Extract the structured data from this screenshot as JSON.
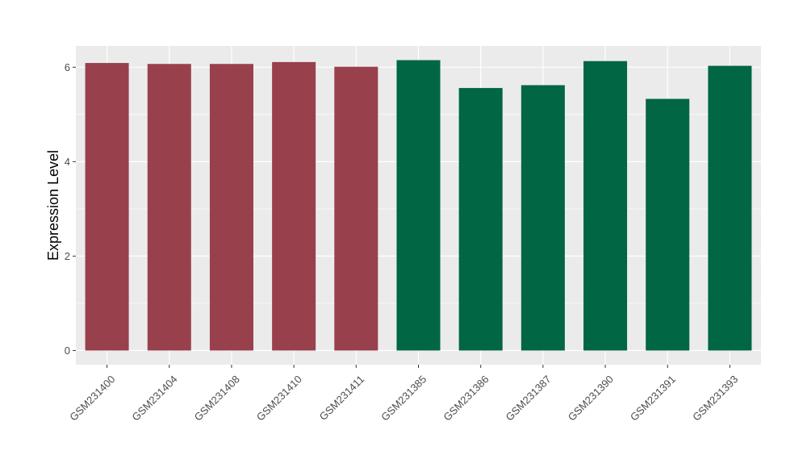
{
  "chart_data": {
    "type": "bar",
    "ylabel": "Expression Level",
    "xlabel": "",
    "title": "",
    "ylim": [
      -0.3,
      6.45
    ],
    "yticks": [
      0,
      2,
      4,
      6
    ],
    "grid": true,
    "panel_background": "#ebebeb",
    "categories": [
      "GSM231400",
      "GSM231404",
      "GSM231408",
      "GSM231410",
      "GSM231411",
      "GSM231385",
      "GSM231386",
      "GSM231387",
      "GSM231390",
      "GSM231391",
      "GSM231393"
    ],
    "values": [
      6.09,
      6.07,
      6.07,
      6.11,
      6.01,
      6.15,
      5.56,
      5.62,
      6.13,
      5.33,
      6.03
    ],
    "bar_colors": [
      "#99404d",
      "#99404d",
      "#99404d",
      "#99404d",
      "#99404d",
      "#006644",
      "#006644",
      "#006644",
      "#006644",
      "#006644",
      "#006644"
    ]
  }
}
